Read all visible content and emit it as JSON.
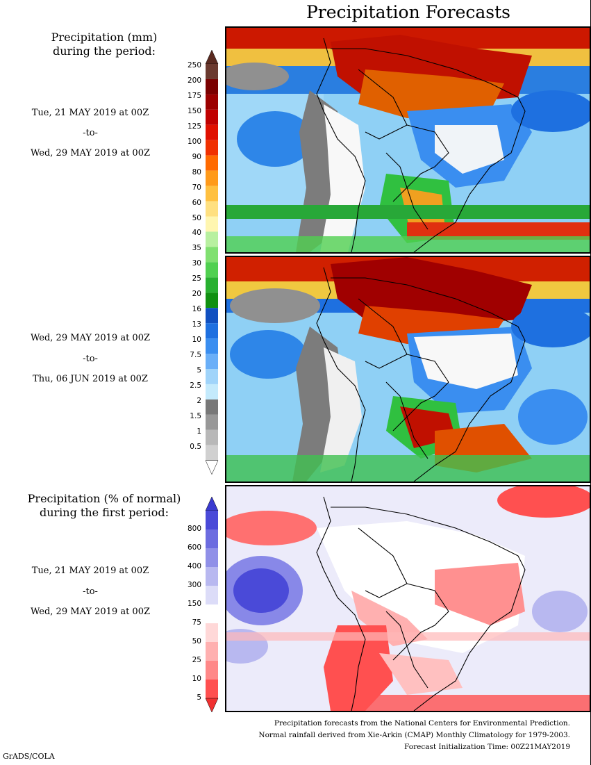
{
  "title": "Precipitation Forecasts",
  "mm_title": [
    "Precipitation (mm)",
    "during the period:"
  ],
  "period1": {
    "from": "Tue, 21 MAY 2019 at 00Z",
    "sep": "-to-",
    "to": "Wed, 29 MAY 2019 at 00Z"
  },
  "period2": {
    "from": "Wed, 29 MAY 2019 at 00Z",
    "sep": "-to-",
    "to": "Thu, 06 JUN 2019 at 00Z"
  },
  "pct_title": [
    "Precipitation (% of normal)",
    "during the first period:"
  ],
  "period3": {
    "from": "Tue, 21 MAY 2019 at 00Z",
    "sep": "-to-",
    "to": "Wed, 29 MAY 2019 at 00Z"
  },
  "mm_scale": {
    "labels": [
      "250",
      "200",
      "175",
      "150",
      "125",
      "100",
      "90",
      "80",
      "70",
      "60",
      "50",
      "40",
      "35",
      "30",
      "25",
      "20",
      "16",
      "13",
      "10",
      "7.5",
      "5",
      "2.5",
      "2",
      "1.5",
      "1",
      "0.5"
    ],
    "colors": [
      "#6b3a2f",
      "#7a0000",
      "#9c0000",
      "#c00000",
      "#e01000",
      "#f03000",
      "#ff6a00",
      "#ff9a1a",
      "#ffc040",
      "#ffe080",
      "#fff6b0",
      "#b8f0a0",
      "#80e070",
      "#50d050",
      "#28b030",
      "#109010",
      "#1050c0",
      "#1e70e0",
      "#3a8ef0",
      "#6aaff8",
      "#a0d4fa",
      "#c4eafc",
      "#787878",
      "#989898",
      "#b8b8b8",
      "#d0d0d0"
    ],
    "top_arrow": "#5a2a20"
  },
  "pct_scale": {
    "labels": [
      "800",
      "600",
      "400",
      "300",
      "150",
      "75",
      "50",
      "25",
      "10",
      "5"
    ],
    "colors": [
      "#4a4ad8",
      "#6c6ce0",
      "#9090e8",
      "#b8b8f0",
      "#dcdcf8",
      "#ffffff",
      "#ffd8d8",
      "#ffb0b0",
      "#ff8888",
      "#ff5050"
    ],
    "top_arrow": "#3a3ad0",
    "bottom_arrow": "#f03030"
  },
  "footnotes": [
    "Precipitation forecasts from the National Centers for Environmental Prediction.",
    "Normal rainfall derived from Xie-Arkin (CMAP) Monthly Climatology for 1979-2003.",
    "Forecast Initialization Time: 00Z21MAY2019"
  ],
  "credit": "GrADS/COLA"
}
